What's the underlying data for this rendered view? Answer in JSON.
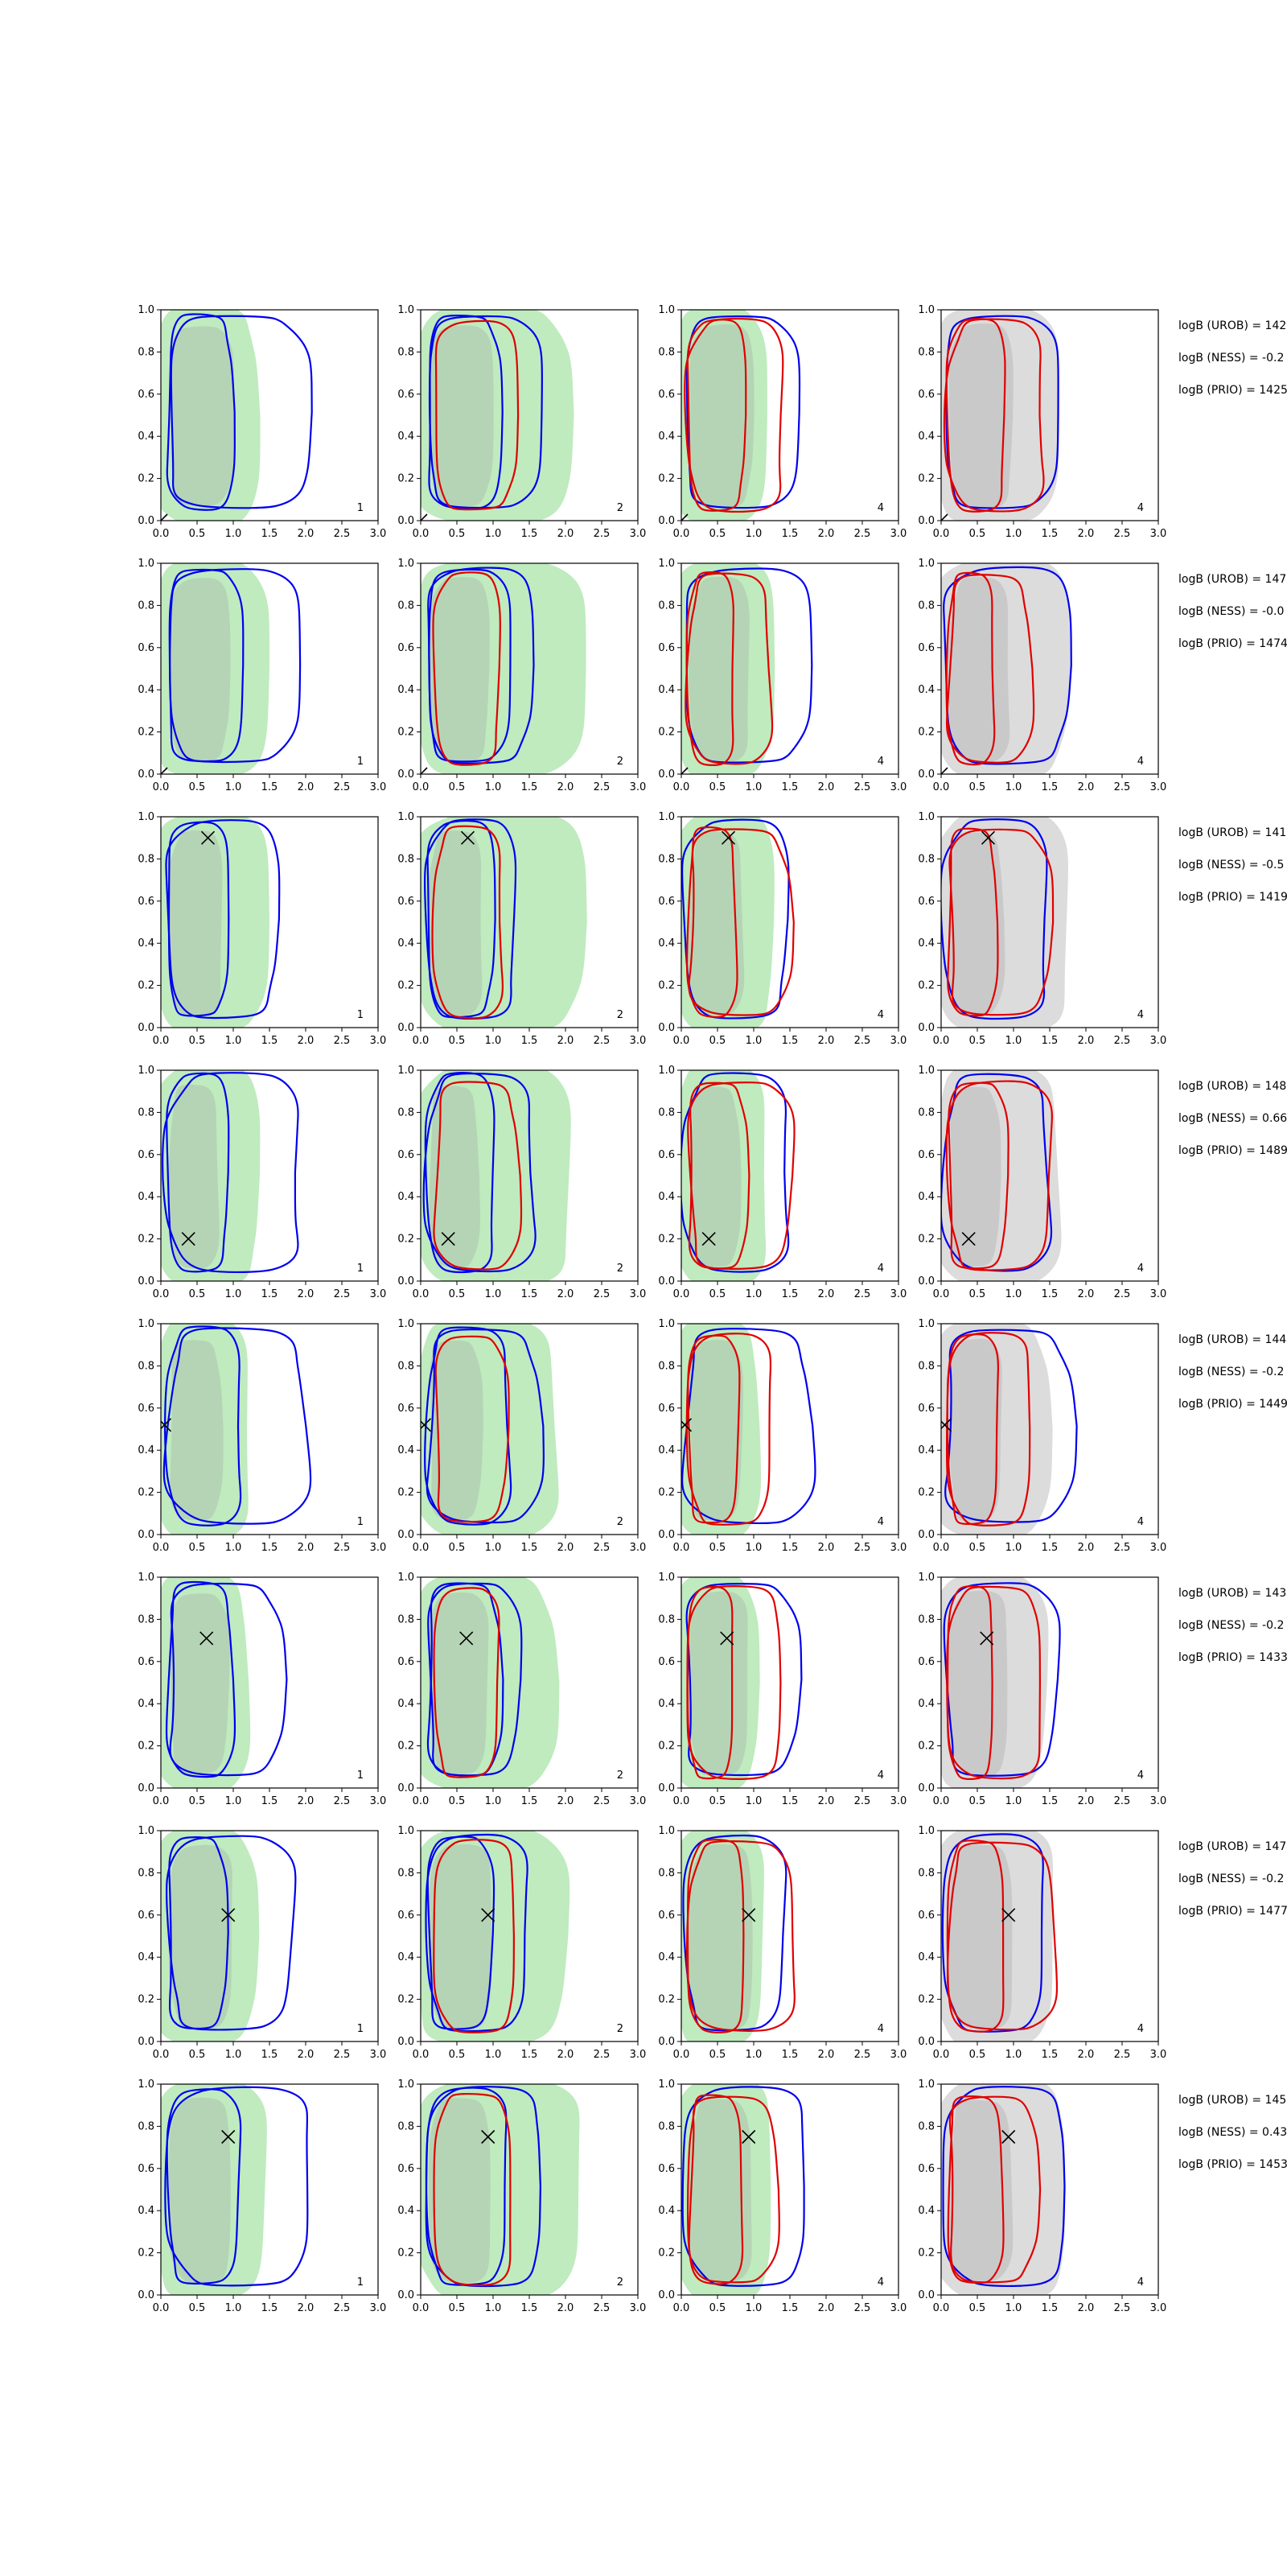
{
  "colors": {
    "green_fill": "#b8e9b8",
    "grey_fill": "#d8d8d8",
    "blue_contour": "#0000ee",
    "red_contour": "#e00000",
    "marker": "#000000"
  },
  "chart_data": {
    "type": "contour-grid",
    "rows": 8,
    "cols": 4,
    "xlim": [
      0,
      3
    ],
    "ylim": [
      0,
      1
    ],
    "x_ticks": [
      "0.0",
      "0.5",
      "1.0",
      "1.5",
      "2.0",
      "2.5",
      "3.0"
    ],
    "y_ticks": [
      "0.0",
      "0.2",
      "0.4",
      "0.6",
      "0.8",
      "1.0"
    ],
    "panel_labels": [
      "1",
      "2",
      "4",
      "4"
    ],
    "column_background": [
      "green",
      "green",
      "green",
      "grey"
    ],
    "markers": [
      {
        "x": 0.0,
        "y": 0.0
      },
      {
        "x": 0.0,
        "y": 0.0
      },
      {
        "x": 0.65,
        "y": 0.9
      },
      {
        "x": 0.38,
        "y": 0.2
      },
      {
        "x": 0.05,
        "y": 0.52
      },
      {
        "x": 0.63,
        "y": 0.71
      },
      {
        "x": 0.93,
        "y": 0.6
      },
      {
        "x": 0.93,
        "y": 0.75
      }
    ],
    "contours": [
      {
        "green": [
          [
            0.0,
            0.0
          ],
          [
            1.5,
            1.0
          ]
        ],
        "blue_in": [
          [
            0.1,
            0.05
          ],
          [
            1.0,
            0.98
          ]
        ],
        "blue_out": [
          [
            0.1,
            0.05
          ],
          [
            1.85,
            0.98
          ]
        ],
        "red_in": null,
        "red_out": null
      },
      {
        "green": [
          [
            0.0,
            0.0
          ],
          [
            2.3,
            1.0
          ]
        ],
        "blue_in": [
          [
            0.1,
            0.05
          ],
          [
            1.1,
            0.98
          ]
        ],
        "blue_out": [
          [
            0.1,
            0.05
          ],
          [
            1.5,
            0.98
          ]
        ],
        "red_in": [
          [
            0.2,
            0.05
          ],
          [
            1.2,
            0.95
          ]
        ],
        "red_out": null
      },
      {
        "green": [
          [
            0.0,
            0.0
          ],
          [
            1.3,
            1.0
          ]
        ],
        "blue_in": [
          [
            0.05,
            0.05
          ],
          [
            1.6,
            0.98
          ]
        ],
        "blue_out": null,
        "red_in": [
          [
            0.1,
            0.05
          ],
          [
            0.8,
            0.95
          ]
        ],
        "red_out": [
          [
            0.1,
            0.05
          ],
          [
            1.4,
            0.95
          ]
        ]
      },
      {
        "green": [
          [
            0.0,
            0.0
          ],
          [
            1.8,
            1.0
          ]
        ],
        "blue_in": [
          [
            0.05,
            0.05
          ],
          [
            1.6,
            0.98
          ]
        ],
        "blue_out": null,
        "red_in": [
          [
            0.1,
            0.05
          ],
          [
            0.8,
            0.95
          ]
        ],
        "red_out": [
          [
            0.1,
            0.05
          ],
          [
            1.4,
            0.95
          ]
        ]
      }
    ]
  },
  "stats": [
    [
      "logB (UROB) = 142",
      "logB (NESS) = -0.2",
      "logB (PRIO) = 1425"
    ],
    [
      "logB (UROB) = 147",
      "logB (NESS) = -0.0",
      "logB (PRIO) = 1474"
    ],
    [
      "logB (UROB) = 141",
      "logB (NESS) = -0.5",
      "logB (PRIO) = 1419"
    ],
    [
      "logB (UROB) = 148",
      "logB (NESS) = 0.66",
      "logB (PRIO) = 1489"
    ],
    [
      "logB (UROB) = 144",
      "logB (NESS) = -0.2",
      "logB (PRIO) = 1449"
    ],
    [
      "logB (UROB) = 143",
      "logB (NESS) = -0.2",
      "logB (PRIO) = 1433"
    ],
    [
      "logB (UROB) = 147",
      "logB (NESS) = -0.2",
      "logB (PRIO) = 1477"
    ],
    [
      "logB (UROB) = 145",
      "logB (NESS) = 0.43",
      "logB (PRIO) = 1453"
    ]
  ]
}
